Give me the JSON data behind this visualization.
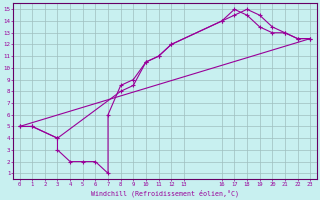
{
  "xlabel": "Windchill (Refroidissement éolien,°C)",
  "bg_color": "#c8f0f0",
  "grid_color": "#9fbfbf",
  "line_color": "#990099",
  "axis_color": "#660066",
  "xlim": [
    -0.5,
    23.5
  ],
  "ylim": [
    0.5,
    15.5
  ],
  "xticks": [
    0,
    1,
    2,
    3,
    4,
    5,
    6,
    7,
    8,
    9,
    10,
    11,
    12,
    13,
    16,
    17,
    18,
    19,
    20,
    21,
    22,
    23
  ],
  "yticks": [
    1,
    2,
    3,
    4,
    5,
    6,
    7,
    8,
    9,
    10,
    11,
    12,
    13,
    14,
    15
  ],
  "line1_x": [
    0,
    1,
    3,
    3,
    4,
    5,
    6,
    7,
    7,
    8,
    9,
    10,
    11,
    12,
    16,
    17,
    18,
    19,
    20,
    21,
    22,
    23
  ],
  "line1_y": [
    5,
    5,
    4,
    3,
    2,
    2,
    2,
    1,
    6,
    8.5,
    9,
    10.5,
    11,
    12,
    14,
    15,
    14.5,
    13.5,
    13,
    13,
    12.5,
    12.5
  ],
  "line2_x": [
    0,
    23
  ],
  "line2_y": [
    5,
    12.5
  ],
  "line3_x": [
    0,
    1,
    3,
    8,
    9,
    10,
    11,
    12,
    16,
    17,
    18,
    19,
    20,
    21,
    22,
    23
  ],
  "line3_y": [
    5,
    5,
    4,
    8,
    8.5,
    10.5,
    11,
    12,
    14,
    14.5,
    15,
    14.5,
    13.5,
    13,
    12.5,
    12.5
  ],
  "figsize": [
    3.2,
    2.0
  ],
  "dpi": 100
}
